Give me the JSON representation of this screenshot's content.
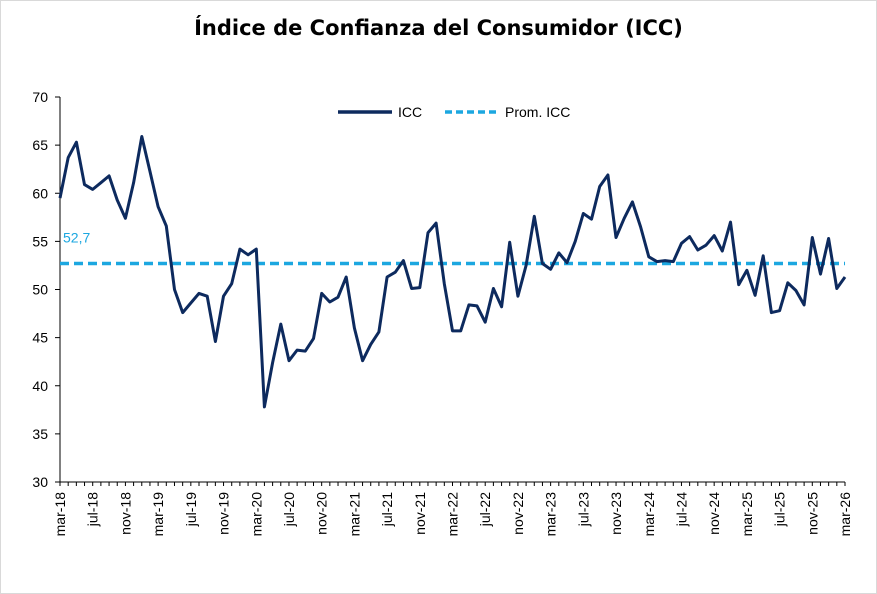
{
  "chart_data": {
    "type": "line",
    "title": "Índice de Confianza del Consumidor (ICC)",
    "ylim": [
      30,
      70
    ],
    "yticks": [
      30,
      35,
      40,
      45,
      50,
      55,
      60,
      65,
      70
    ],
    "x_tick_labels": [
      "mar-18",
      "jul-18",
      "nov-18",
      "mar-19",
      "jul-19",
      "nov-19",
      "mar-20",
      "jul-20",
      "nov-20",
      "mar-21",
      "jul-21",
      "nov-21",
      "mar-22",
      "jul-22",
      "nov-22",
      "mar-23",
      "jul-23",
      "nov-23",
      "mar-24",
      "jul-24",
      "nov-24",
      "mar-25",
      "jul-25",
      "nov-25",
      "mar-26"
    ],
    "x_start": "2018-03",
    "x_end": "2026-03",
    "legend_position": "top-center",
    "series": [
      {
        "name": "ICC",
        "color": "#0d2a5e",
        "style": "solid",
        "values": [
          59.5,
          63.7,
          65.3,
          60.9,
          60.4,
          61.1,
          61.8,
          59.3,
          57.4,
          61.1,
          65.9,
          62.3,
          58.6,
          56.6,
          50.0,
          47.6,
          48.6,
          49.6,
          49.3,
          44.6,
          49.3,
          50.6,
          54.2,
          53.6,
          54.2,
          37.8,
          42.4,
          46.4,
          42.6,
          43.7,
          43.6,
          44.9,
          49.6,
          48.7,
          49.2,
          51.3,
          46.0,
          42.6,
          44.3,
          45.6,
          51.3,
          51.8,
          53.0,
          50.1,
          50.2,
          55.9,
          56.9,
          50.6,
          45.7,
          45.7,
          48.4,
          48.3,
          46.6,
          50.1,
          48.2,
          54.9,
          49.3,
          52.5,
          57.6,
          52.7,
          52.1,
          53.8,
          52.8,
          55.0,
          57.9,
          57.3,
          60.7,
          61.9,
          55.4,
          57.4,
          59.1,
          56.5,
          53.4,
          52.9,
          53.0,
          52.9,
          54.8,
          55.5,
          54.1,
          54.6,
          55.6,
          54.0,
          57.0,
          50.5,
          52.0,
          49.4,
          53.5,
          47.6,
          47.8,
          50.7,
          49.9,
          48.4,
          55.4,
          51.6,
          55.3,
          50.1,
          51.3
        ]
      },
      {
        "name": "Prom. ICC",
        "color": "#1ca7e0",
        "style": "dashed",
        "value": 52.7,
        "label": "52,7"
      }
    ]
  }
}
